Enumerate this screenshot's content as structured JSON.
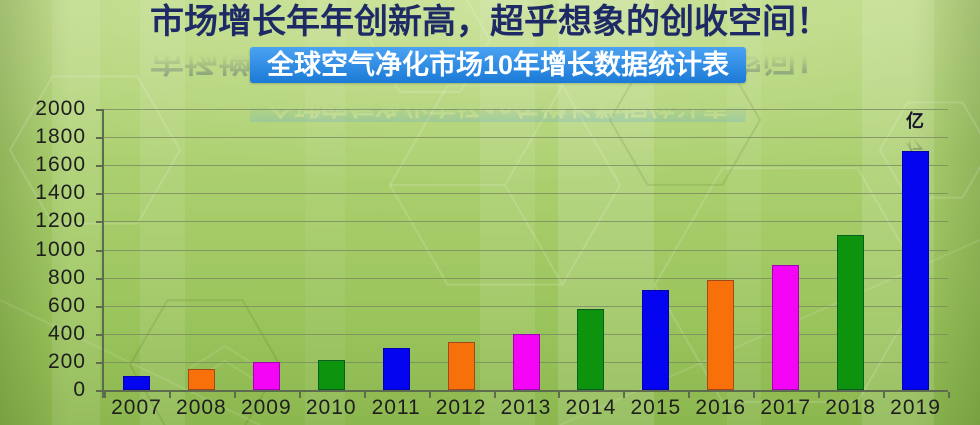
{
  "header": {
    "title": "市场增长年年创新高，超乎想象的创收空间！",
    "subtitle": "全球空气净化市场10年增长数据统计表"
  },
  "chart_data": {
    "type": "bar",
    "title": "全球空气净化市场10年增长数据统计表",
    "unit": "亿",
    "categories": [
      "2007",
      "2008",
      "2009",
      "2010",
      "2011",
      "2012",
      "2013",
      "2014",
      "2015",
      "2016",
      "2017",
      "2018",
      "2019"
    ],
    "values": [
      100,
      150,
      200,
      210,
      300,
      340,
      400,
      580,
      710,
      780,
      890,
      1100,
      1700
    ],
    "bar_colors": [
      "#0404f0",
      "#f8700a",
      "#f505f5",
      "#0e930e",
      "#0404f0",
      "#f8700a",
      "#f505f5",
      "#0e930e",
      "#0404f0",
      "#f8700a",
      "#f505f5",
      "#0e930e",
      "#0404f0"
    ],
    "ylim": [
      0,
      2000
    ],
    "ytick_step": 200,
    "ytick_labels": [
      "0",
      "200",
      "400",
      "600",
      "800",
      "1000",
      "1200",
      "1400",
      "1600",
      "1800",
      "2000"
    ],
    "grid": true,
    "legend": null,
    "xlabel": "",
    "ylabel": ""
  },
  "colors": {
    "title_text": "#1e2a66",
    "banner_bg_top": "#4aa2f2",
    "banner_bg_bottom": "#1b7ad6",
    "banner_text": "#ffffff",
    "axis": "#5d6c4f",
    "gridline": "#7a8960",
    "tick_label": "#1e1e1e",
    "unit_text": "#14142a"
  }
}
